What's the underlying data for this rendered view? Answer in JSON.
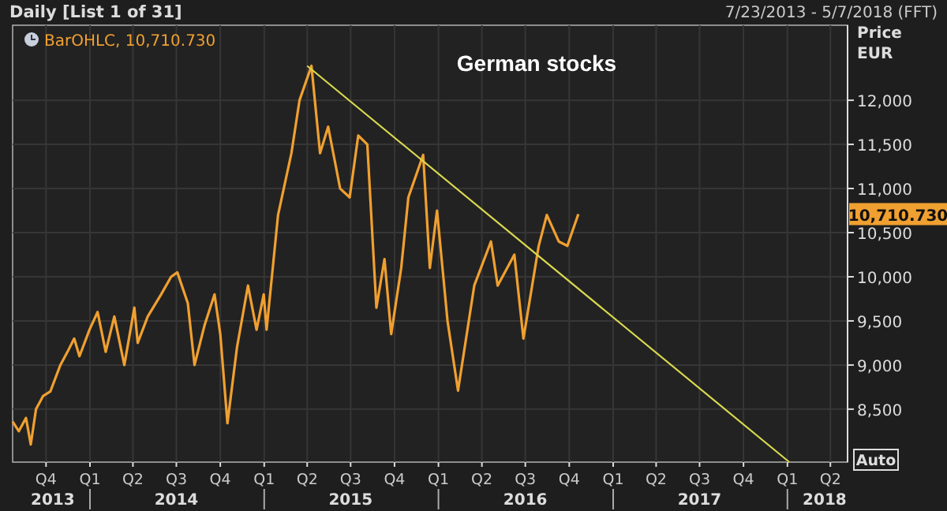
{
  "chart_data": {
    "type": "line",
    "title": "German stocks",
    "subtitle": "Daily [List 1 of 31]",
    "ylabel": "Price\nEUR",
    "annotations": [
      "7/23/2013 - 5/7/2018 (FFT)",
      "Auto",
      "10,710.730"
    ],
    "legend": "top left",
    "grid": true,
    "xlim": [
      "2013-07-23",
      "2018-05-07"
    ],
    "xticks": [
      {
        "value": "2013-10-01",
        "label": "Q4"
      },
      {
        "value": "2014-01-01",
        "label": "Q1"
      },
      {
        "value": "2014-04-01",
        "label": "Q2"
      },
      {
        "value": "2014-07-01",
        "label": "Q3"
      },
      {
        "value": "2014-10-01",
        "label": "Q4"
      },
      {
        "value": "2015-01-01",
        "label": "Q1"
      },
      {
        "value": "2015-04-01",
        "label": "Q2"
      },
      {
        "value": "2015-07-01",
        "label": "Q3"
      },
      {
        "value": "2015-10-01",
        "label": "Q4"
      },
      {
        "value": "2016-01-01",
        "label": "Q1"
      },
      {
        "value": "2016-04-01",
        "label": "Q2"
      },
      {
        "value": "2016-07-01",
        "label": "Q3"
      },
      {
        "value": "2016-10-01",
        "label": "Q4"
      },
      {
        "value": "2017-01-01",
        "label": "Q1"
      },
      {
        "value": "2017-04-01",
        "label": "Q2"
      },
      {
        "value": "2017-07-01",
        "label": "Q3"
      },
      {
        "value": "2017-10-01",
        "label": "Q4"
      },
      {
        "value": "2018-01-01",
        "label": "Q1"
      },
      {
        "value": "2018-04-01",
        "label": "Q2"
      }
    ],
    "x2lim": [
      "2013-07-23",
      "2018-05-07"
    ],
    "x2ticks": [
      {
        "value": "2013-10-15",
        "label": "2013"
      },
      {
        "value": "2014-07-01",
        "label": "2014"
      },
      {
        "value": "2015-07-01",
        "label": "2015"
      },
      {
        "value": "2016-07-01",
        "label": "2016"
      },
      {
        "value": "2017-07-01",
        "label": "2017"
      },
      {
        "value": "2018-03-20",
        "label": "2018"
      }
    ],
    "ylim": [
      7900,
      12850
    ],
    "yticks": [
      {
        "value": 8500,
        "label": "8,500"
      },
      {
        "value": 9000,
        "label": "9,000"
      },
      {
        "value": 9500,
        "label": "9,500"
      },
      {
        "value": 10000,
        "label": "10,000"
      },
      {
        "value": 10500,
        "label": "10,500"
      },
      {
        "value": 11000,
        "label": "11,000"
      },
      {
        "value": 11500,
        "label": "11,500"
      },
      {
        "value": 12000,
        "label": "12,000"
      }
    ],
    "series": [
      {
        "name": "BarOHLC, 10,710.730",
        "color": "#f0a030",
        "x": [
          "2013-07-23",
          "2013-08-05",
          "2013-08-20",
          "2013-08-30",
          "2013-09-10",
          "2013-09-25",
          "2013-10-10",
          "2013-10-31",
          "2013-11-15",
          "2013-11-29",
          "2013-12-10",
          "2013-12-31",
          "2014-01-17",
          "2014-02-03",
          "2014-02-21",
          "2014-03-14",
          "2014-04-04",
          "2014-04-11",
          "2014-05-02",
          "2014-05-30",
          "2014-06-20",
          "2014-07-03",
          "2014-07-25",
          "2014-08-08",
          "2014-08-29",
          "2014-09-19",
          "2014-10-01",
          "2014-10-16",
          "2014-11-05",
          "2014-11-28",
          "2014-12-16",
          "2014-12-31",
          "2015-01-06",
          "2015-01-30",
          "2015-02-27",
          "2015-03-16",
          "2015-04-10",
          "2015-04-28",
          "2015-05-15",
          "2015-06-09",
          "2015-06-29",
          "2015-07-17",
          "2015-08-05",
          "2015-08-24",
          "2015-09-10",
          "2015-09-24",
          "2015-10-15",
          "2015-10-30",
          "2015-11-30",
          "2015-12-14",
          "2015-12-29",
          "2016-01-20",
          "2016-02-11",
          "2016-03-16",
          "2016-04-20",
          "2016-05-04",
          "2016-06-08",
          "2016-06-27",
          "2016-07-29",
          "2016-08-15",
          "2016-09-09",
          "2016-09-27",
          "2016-10-20"
        ],
        "values": [
          8360,
          8250,
          8400,
          8100,
          8500,
          8650,
          8700,
          9000,
          9150,
          9300,
          9100,
          9400,
          9600,
          9150,
          9550,
          9000,
          9650,
          9250,
          9550,
          9800,
          10000,
          10050,
          9700,
          9000,
          9450,
          9800,
          9350,
          8340,
          9200,
          9900,
          9400,
          9800,
          9400,
          10700,
          11400,
          12000,
          12390,
          11400,
          11700,
          11000,
          10900,
          11600,
          11500,
          9650,
          10200,
          9350,
          10100,
          10900,
          11380,
          10100,
          10750,
          9500,
          8710,
          9900,
          10400,
          9900,
          10250,
          9300,
          10350,
          10700,
          10400,
          10350,
          10710
        ]
      },
      {
        "type": "line",
        "color": "#d8d850",
        "x": [
          "2015-04-01",
          "2018-01-05"
        ],
        "values": [
          12390,
          7900
        ]
      }
    ]
  }
}
